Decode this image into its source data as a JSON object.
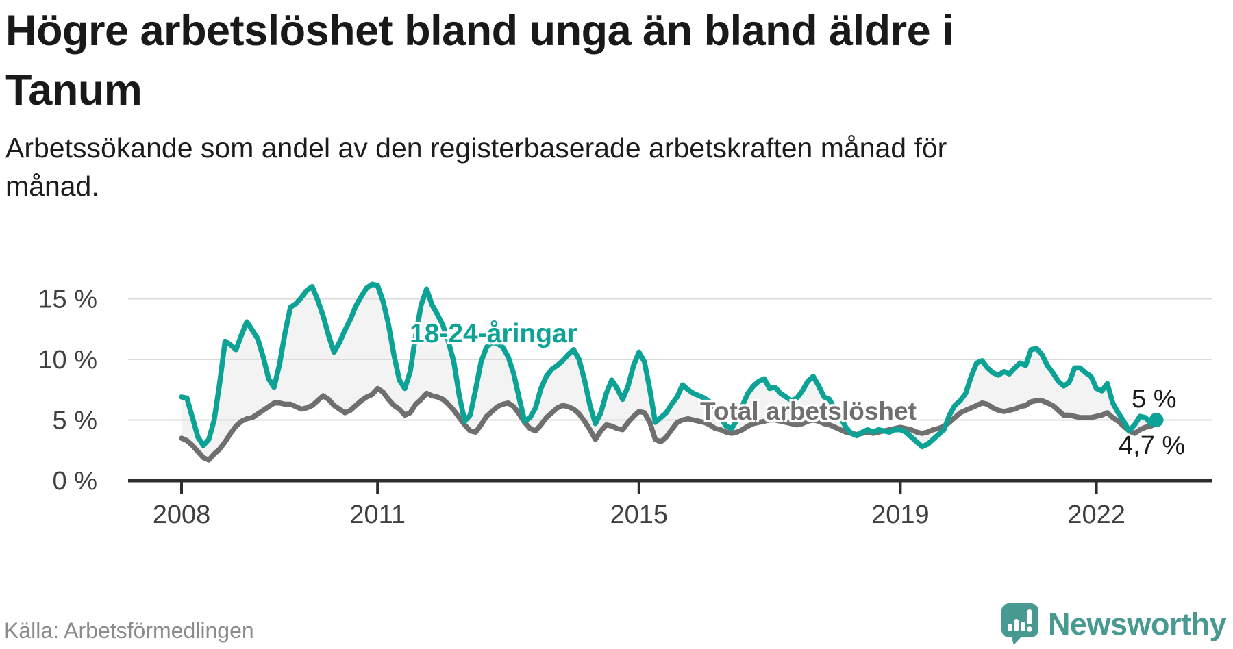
{
  "header": {
    "title_lines": [
      "Högre arbetslöshet bland unga än bland äldre i",
      "Tanum"
    ],
    "subtitle_lines": [
      "Arbetssökande som andel av den registerbaserade arbetskraften månad för",
      "månad."
    ]
  },
  "footer": {
    "source_text": "Källa: Arbetsförmedlingen"
  },
  "brand": {
    "name": "Newsworthy",
    "color": "#489a91",
    "logo_icon": "speech-bubble-bar-chart-exclamation"
  },
  "chart_data": {
    "type": "line",
    "title": "Högre arbetslöshet bland unga än bland äldre i Tanum",
    "subtitle": "Arbetssökande som andel av den registerbaserade arbetskraften månad för månad.",
    "unit": "%",
    "frequency": "monthly",
    "x_start": "2008-01",
    "x_end": "2022-12",
    "grid": "horizontal",
    "ylim": [
      0,
      17
    ],
    "ytick_values": [
      0,
      5,
      10,
      15
    ],
    "ytick_labels": [
      "0 %",
      "5 %",
      "10 %",
      "15 %"
    ],
    "xtick_values": [
      2008,
      2011,
      2015,
      2019,
      2022
    ],
    "xtick_labels": [
      "2008",
      "2011",
      "2015",
      "2019",
      "2022"
    ],
    "band_fill_color": "#f3f3f3",
    "series": [
      {
        "name": "18-24-åringar",
        "color": "#0ca295",
        "end_label": "5 %",
        "end_dot": true,
        "values": [
          6.9,
          6.8,
          5.2,
          3.6,
          2.9,
          3.4,
          5.0,
          8.0,
          11.5,
          11.2,
          10.8,
          12.0,
          13.1,
          12.4,
          11.7,
          10.2,
          8.4,
          7.7,
          9.6,
          12.2,
          14.3,
          14.6,
          15.1,
          15.7,
          16.0,
          14.9,
          13.6,
          12.0,
          10.6,
          11.4,
          12.4,
          13.3,
          14.4,
          15.2,
          15.9,
          16.2,
          16.1,
          14.8,
          12.9,
          10.4,
          8.3,
          7.6,
          9.0,
          12.0,
          14.5,
          15.8,
          14.5,
          13.7,
          12.8,
          11.5,
          9.8,
          7.0,
          4.9,
          5.4,
          7.5,
          9.8,
          11.0,
          11.4,
          11.3,
          11.0,
          10.2,
          8.8,
          6.8,
          4.9,
          5.2,
          6.0,
          7.6,
          8.6,
          9.2,
          9.5,
          9.9,
          10.4,
          10.8,
          10.0,
          8.3,
          6.2,
          4.7,
          5.6,
          7.2,
          8.3,
          7.6,
          6.7,
          7.8,
          9.5,
          10.6,
          9.8,
          7.5,
          4.8,
          5.2,
          5.6,
          6.3,
          6.9,
          7.9,
          7.5,
          7.2,
          7.0,
          6.8,
          6.5,
          6.0,
          5.2,
          4.5,
          4.3,
          5.0,
          6.2,
          7.2,
          7.8,
          8.2,
          8.4,
          7.6,
          7.7,
          7.2,
          6.9,
          6.6,
          6.8,
          7.4,
          8.2,
          8.6,
          7.8,
          6.9,
          6.7,
          5.8,
          5.2,
          4.4,
          3.9,
          3.7,
          4.0,
          4.2,
          4.0,
          4.2,
          4.1,
          4.0,
          4.2,
          4.2,
          4.0,
          3.6,
          3.2,
          2.8,
          3.0,
          3.4,
          3.8,
          4.2,
          5.4,
          6.2,
          6.6,
          7.2,
          8.6,
          9.7,
          9.9,
          9.3,
          8.9,
          8.7,
          9.0,
          8.8,
          9.3,
          9.7,
          9.5,
          10.8,
          10.9,
          10.4,
          9.5,
          8.9,
          8.2,
          7.8,
          8.1,
          9.3,
          9.3,
          8.9,
          8.6,
          7.6,
          7.4,
          8.0,
          6.4,
          5.6,
          4.9,
          4.1,
          4.6,
          5.3,
          5.2,
          4.7,
          5.0
        ]
      },
      {
        "name": "Total arbetslöshet",
        "color": "#6f6f6f",
        "end_label": "4,7 %",
        "end_dot": false,
        "values": [
          3.5,
          3.3,
          2.9,
          2.4,
          1.9,
          1.7,
          2.2,
          2.6,
          3.2,
          3.9,
          4.5,
          4.9,
          5.1,
          5.2,
          5.5,
          5.8,
          6.1,
          6.4,
          6.4,
          6.3,
          6.3,
          6.1,
          5.9,
          6.0,
          6.2,
          6.6,
          7.0,
          6.7,
          6.2,
          5.9,
          5.6,
          5.8,
          6.2,
          6.6,
          6.9,
          7.1,
          7.6,
          7.3,
          6.7,
          6.2,
          5.9,
          5.4,
          5.6,
          6.3,
          6.7,
          7.2,
          7.0,
          6.9,
          6.7,
          6.3,
          5.8,
          5.2,
          4.6,
          4.1,
          4.0,
          4.6,
          5.3,
          5.7,
          6.1,
          6.3,
          6.4,
          6.1,
          5.5,
          4.8,
          4.3,
          4.1,
          4.6,
          5.2,
          5.6,
          6.0,
          6.2,
          6.1,
          5.9,
          5.5,
          4.9,
          4.2,
          3.4,
          4.1,
          4.6,
          4.5,
          4.3,
          4.2,
          4.8,
          5.3,
          5.7,
          5.6,
          4.8,
          3.4,
          3.2,
          3.6,
          4.2,
          4.8,
          5.0,
          5.1,
          5.0,
          4.9,
          4.8,
          4.6,
          4.3,
          4.2,
          4.0,
          3.9,
          4.0,
          4.2,
          4.5,
          4.7,
          4.8,
          4.9,
          5.0,
          5.0,
          4.9,
          4.8,
          4.7,
          4.6,
          4.7,
          4.9,
          5.0,
          4.9,
          4.7,
          4.6,
          4.4,
          4.2,
          4.0,
          3.9,
          3.8,
          3.9,
          4.0,
          3.9,
          4.0,
          4.1,
          4.2,
          4.3,
          4.4,
          4.3,
          4.2,
          4.0,
          3.9,
          4.0,
          4.2,
          4.3,
          4.5,
          4.8,
          5.2,
          5.6,
          5.8,
          6.0,
          6.2,
          6.4,
          6.3,
          6.0,
          5.8,
          5.7,
          5.8,
          5.9,
          6.1,
          6.2,
          6.5,
          6.6,
          6.6,
          6.4,
          6.2,
          5.8,
          5.4,
          5.4,
          5.3,
          5.2,
          5.2,
          5.2,
          5.3,
          5.4,
          5.6,
          5.2,
          4.9,
          4.5,
          4.1,
          3.9,
          4.2,
          4.4,
          4.5,
          4.7
        ]
      }
    ]
  }
}
